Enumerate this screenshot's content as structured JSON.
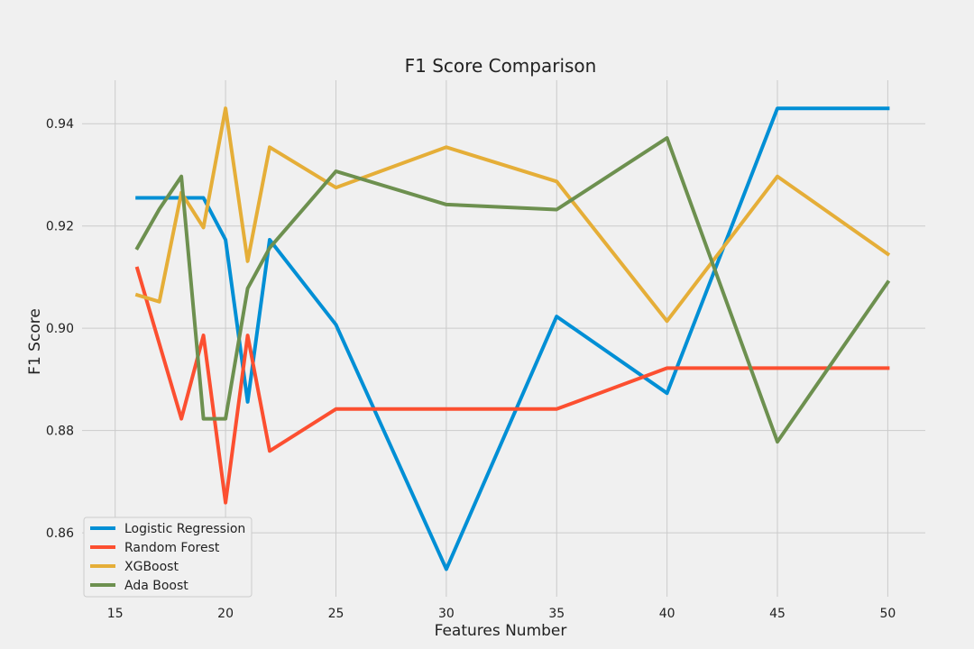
{
  "chart_data": {
    "type": "line",
    "title": "F1 Score Comparison",
    "xlabel": "Features Number",
    "ylabel": "F1 Score",
    "xlim": [
      13.5,
      51.7
    ],
    "ylim": [
      0.8475,
      0.9485
    ],
    "x_ticks": [
      15,
      20,
      25,
      30,
      35,
      40,
      45,
      50
    ],
    "y_ticks": [
      0.86,
      0.88,
      0.9,
      0.92,
      0.94
    ],
    "y_tick_labels": [
      "0.86",
      "0.88",
      "0.90",
      "0.92",
      "0.94"
    ],
    "grid": true,
    "legend_position": "lower-left",
    "series": [
      {
        "name": "Logistic Regression",
        "color": "#008fd5",
        "x": [
          16,
          17,
          18,
          19,
          20,
          21,
          22,
          25,
          30,
          35,
          40,
          45,
          50
        ],
        "y": [
          0.9255,
          0.9255,
          0.9255,
          0.9255,
          0.9173,
          0.8856,
          0.9173,
          0.9007,
          0.8529,
          0.9023,
          0.8873,
          0.943,
          0.943
        ]
      },
      {
        "name": "Random Forest",
        "color": "#fc4f30",
        "x": [
          16,
          18,
          19,
          20,
          21,
          22,
          25,
          30,
          35,
          40,
          45,
          50
        ],
        "y": [
          0.9117,
          0.8823,
          0.8986,
          0.8659,
          0.8986,
          0.876,
          0.8842,
          0.8842,
          0.8842,
          0.8922,
          0.8922,
          0.8922
        ]
      },
      {
        "name": "XGBoost",
        "color": "#e5ae38",
        "x": [
          16,
          17,
          18,
          19,
          20,
          21,
          22,
          25,
          30,
          35,
          40,
          45,
          50
        ],
        "y": [
          0.9065,
          0.9052,
          0.9265,
          0.9197,
          0.943,
          0.9131,
          0.9354,
          0.9275,
          0.9354,
          0.9287,
          0.9014,
          0.9297,
          0.9145
        ]
      },
      {
        "name": "Ada Boost",
        "color": "#6d904f",
        "x": [
          16,
          17,
          18,
          19,
          20,
          21,
          22,
          25,
          30,
          35,
          40,
          45,
          50
        ],
        "y": [
          0.9157,
          0.9233,
          0.9297,
          0.8823,
          0.8823,
          0.9078,
          0.9157,
          0.9307,
          0.9242,
          0.9232,
          0.9372,
          0.8778,
          0.909
        ]
      }
    ]
  }
}
